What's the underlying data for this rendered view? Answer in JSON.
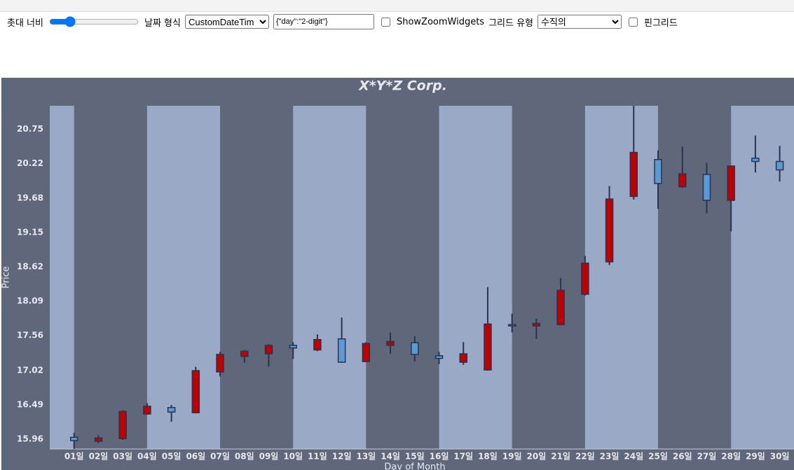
{
  "toolbar": {
    "candle_width_label": "촛대 너비",
    "date_format_label": "날짜 형식",
    "date_format_option": "CustomDateTim",
    "date_format_input": "{\"day\":\"2-digit\"}",
    "zoom_widgets_label": "ShowZoomWidgets",
    "grid_type_label": "그리드 유형",
    "grid_type_option": "수직의",
    "pin_grid_label": "핀그리드"
  },
  "chart_data": {
    "type": "candlestick",
    "title": "X*Y*Z Corp.",
    "x_label": "Day of Month",
    "y_label": "Price",
    "categories": [
      "01일",
      "02일",
      "03일",
      "04일",
      "05일",
      "06일",
      "07일",
      "08일",
      "09일",
      "10일",
      "11일",
      "12일",
      "13일",
      "14일",
      "15일",
      "16일",
      "17일",
      "18일",
      "19일",
      "20일",
      "21일",
      "22일",
      "23일",
      "24일",
      "25일",
      "26일",
      "27일",
      "28일",
      "29일",
      "30일"
    ],
    "open": [
      15.99,
      15.93,
      15.97,
      16.35,
      16.45,
      16.37,
      17.0,
      17.24,
      17.28,
      17.41,
      17.34,
      17.51,
      17.16,
      17.41,
      17.45,
      17.25,
      17.15,
      17.03,
      17.73,
      17.71,
      17.73,
      18.2,
      18.7,
      19.71,
      20.28,
      19.86,
      20.05,
      19.65,
      20.3,
      20.25
    ],
    "high": [
      16.06,
      16.02,
      16.41,
      16.52,
      16.49,
      17.08,
      17.31,
      17.34,
      17.43,
      17.46,
      17.58,
      17.84,
      17.46,
      17.61,
      17.55,
      17.31,
      17.46,
      18.31,
      17.9,
      17.82,
      18.45,
      18.79,
      19.87,
      21.11,
      20.42,
      20.48,
      20.23,
      20.18,
      20.65,
      20.49
    ],
    "low": [
      15.81,
      15.9,
      15.95,
      16.34,
      16.23,
      16.36,
      16.93,
      17.14,
      17.08,
      17.2,
      17.32,
      17.14,
      17.15,
      17.28,
      17.16,
      17.12,
      17.11,
      17.02,
      17.61,
      17.51,
      17.72,
      18.18,
      18.65,
      19.66,
      19.52,
      19.84,
      19.45,
      19.17,
      20.08,
      19.94
    ],
    "close": [
      15.94,
      15.98,
      16.39,
      16.47,
      16.38,
      17.02,
      17.27,
      17.32,
      17.41,
      17.37,
      17.5,
      17.15,
      17.44,
      17.47,
      17.27,
      17.21,
      17.28,
      17.74,
      17.71,
      17.75,
      18.26,
      18.68,
      19.67,
      20.39,
      19.91,
      20.06,
      19.65,
      20.18,
      20.25,
      20.12
    ],
    "up_color": "#c00000",
    "down_color": "#5b9bd5",
    "ylim": [
      15.81,
      21.11
    ],
    "yticks": [
      15.96,
      16.49,
      17.02,
      17.56,
      18.09,
      18.62,
      19.15,
      19.68,
      20.22,
      20.75
    ]
  }
}
